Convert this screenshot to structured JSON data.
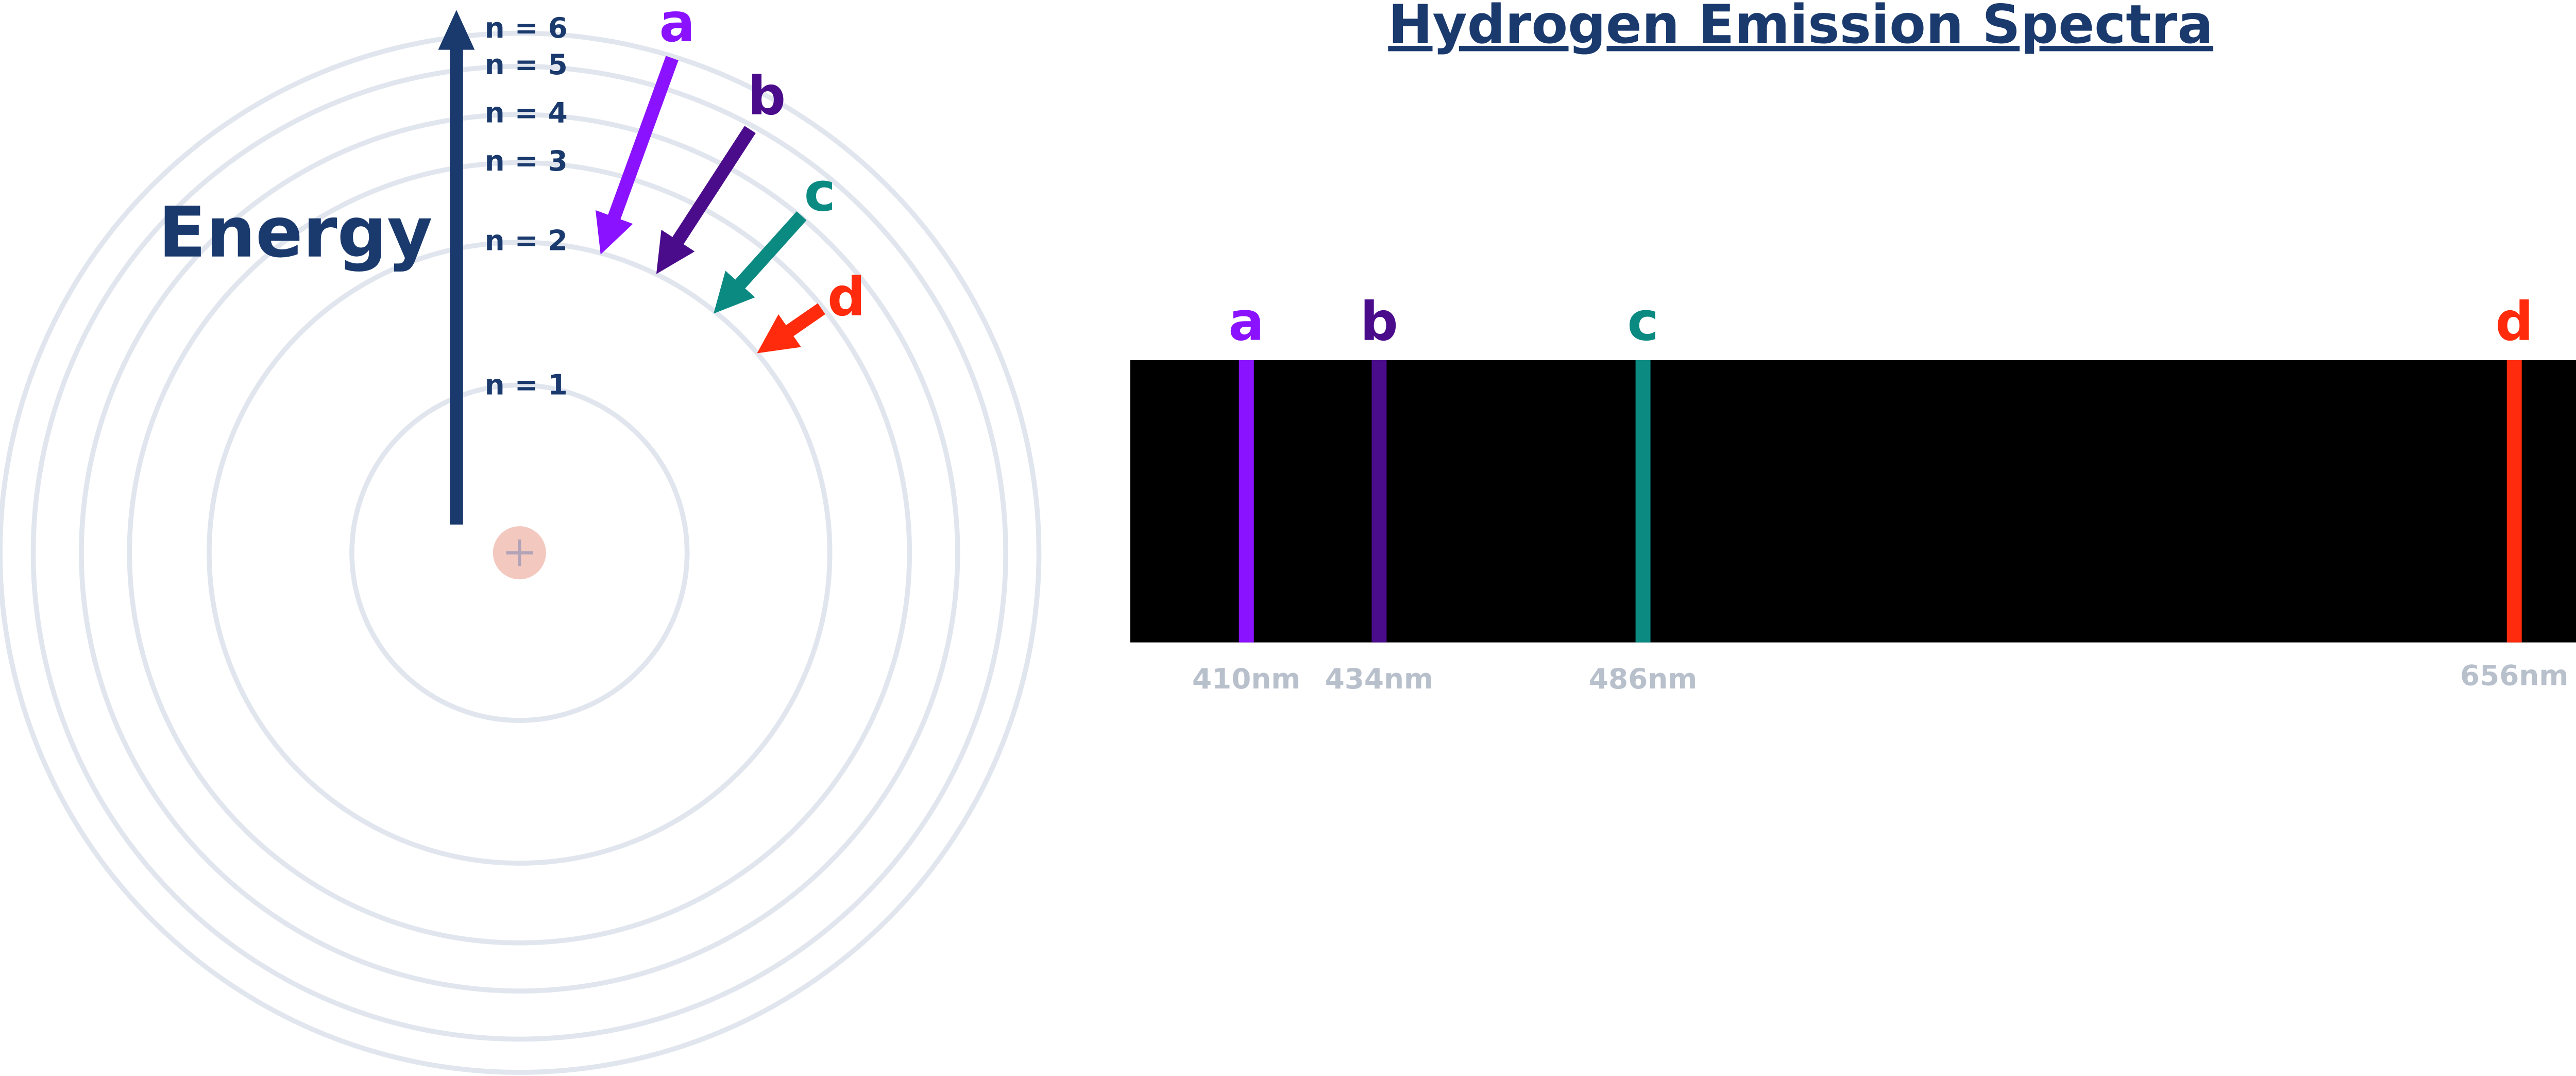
{
  "title": "Hydrogen Emission Spectra",
  "energy_label": "Energy",
  "levels": [
    "n = 1",
    "n = 2",
    "n = 3",
    "n = 4",
    "n = 5",
    "n = 6"
  ],
  "transitions": [
    {
      "label": "a",
      "color": "#8a12ff"
    },
    {
      "label": "b",
      "color": "#4b0c8c"
    },
    {
      "label": "c",
      "color": "#0b8a82"
    },
    {
      "label": "d",
      "color": "#ff2b0c"
    }
  ],
  "spectrum": {
    "lines": [
      {
        "label": "a",
        "wavelength": "410nm",
        "color": "#8a12ff"
      },
      {
        "label": "b",
        "wavelength": "434nm",
        "color": "#4b0c8c"
      },
      {
        "label": "c",
        "wavelength": "486nm",
        "color": "#0b8a82"
      },
      {
        "label": "d",
        "wavelength": "656nm",
        "color": "#ff2b0c"
      }
    ]
  }
}
